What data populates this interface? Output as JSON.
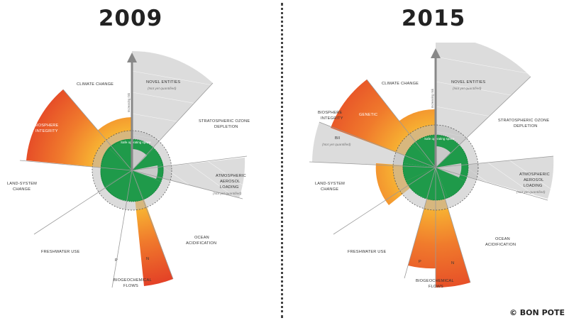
{
  "header": {
    "title_left": "2009",
    "title_right": "2015",
    "credit": "© BON POTE"
  },
  "colors": {
    "safe_green": "#1f9a4a",
    "increasing_risk_orange": "#f7a02d",
    "high_risk_red": "#e8452a",
    "not_quantified_grey": "#d8d8d8",
    "divider": "#444444"
  },
  "panel_2009": {
    "labels": {
      "climate_change": "CLIMATE CHANGE",
      "novel_entities": "NOVEL ENTITIES",
      "novel_entities_note": "(Not yet quantified)",
      "stratospheric_1": "STRATOSPHERIC OZONE",
      "stratospheric_2": "DEPLETION",
      "atmospheric_1": "ATMOSPHERIC",
      "atmospheric_2": "AEROSOL",
      "atmospheric_3": "LOADING",
      "atmospheric_note": "(Not yet quantified)",
      "ocean_1": "OCEAN",
      "ocean_2": "ACIDIFICATION",
      "biogeochemical_1": "BIOGEOCHEMICAL",
      "biogeochemical_2": "FLOWS",
      "p": "P",
      "n": "N",
      "freshwater": "FRESHWATER USE",
      "land_system_1": "LAND-SYSTEM",
      "land_system_2": "CHANGE",
      "biosphere_1": "BIOSPHERE",
      "biosphere_2": "INTEGRITY",
      "ring": "Safe operating space",
      "axis": "Increasing risk"
    }
  },
  "panel_2015": {
    "labels": {
      "climate_change": "CLIMATE CHANGE",
      "novel_entities": "NOVEL ENTITIES",
      "novel_entities_note": "(Not yet quantified)",
      "stratospheric_1": "STRATOSPHERIC OZONE",
      "stratospheric_2": "DEPLETION",
      "atmospheric_1": "ATMOSPHERIC",
      "atmospheric_2": "AEROSOL",
      "atmospheric_3": "LOADING",
      "atmospheric_note": "(Not yet quantified)",
      "ocean_1": "OCEAN",
      "ocean_2": "ACIDIFICATION",
      "biogeochemical_1": "BIOGEOCHEMICAL",
      "biogeochemical_2": "FLOWS",
      "p": "P",
      "n": "N",
      "freshwater": "FRESHWATER USE",
      "land_system_1": "LAND-SYSTEM",
      "land_system_2": "CHANGE",
      "biosphere_1": "BIOSPHERE",
      "biosphere_2": "INTEGRITY",
      "genetic": "GENETIC",
      "bii": "BII",
      "bii_note": "(Not yet quantified)",
      "ring": "Safe operating space",
      "axis": "Increasing risk"
    }
  }
}
